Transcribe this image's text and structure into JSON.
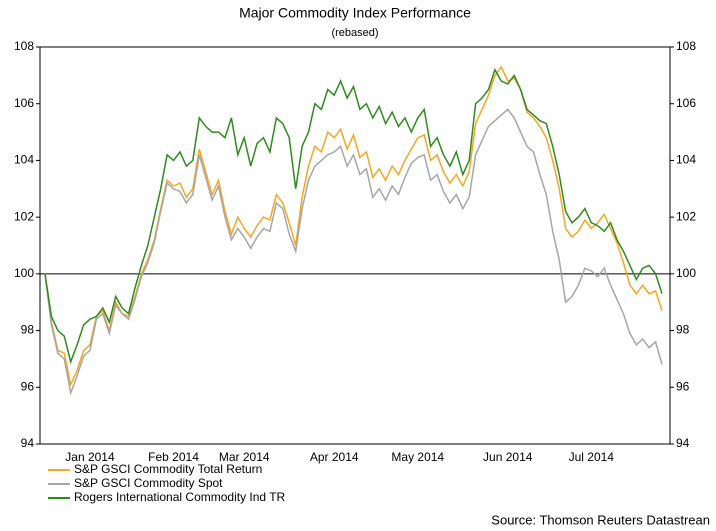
{
  "chart_data": {
    "type": "line",
    "title": "Major Commodity Index Performance",
    "subtitle": "(rebased)",
    "source": "Source: Thomson Reuters Datastrean",
    "categories": [
      null,
      null,
      null,
      null,
      null,
      null,
      null,
      "Jan 2014",
      null,
      null,
      null,
      null,
      null,
      null,
      null,
      null,
      null,
      null,
      null,
      null,
      "Feb 2014",
      null,
      null,
      null,
      null,
      null,
      null,
      null,
      null,
      null,
      null,
      "Mar 2014",
      null,
      null,
      null,
      null,
      null,
      null,
      null,
      null,
      null,
      null,
      null,
      null,
      null,
      "Apr 2014",
      null,
      null,
      null,
      null,
      null,
      null,
      null,
      null,
      null,
      null,
      null,
      null,
      "May 2014",
      null,
      null,
      null,
      null,
      null,
      null,
      null,
      null,
      null,
      null,
      null,
      null,
      null,
      "Jun 2014",
      null,
      null,
      null,
      null,
      null,
      null,
      null,
      null,
      null,
      null,
      null,
      null,
      "Jul 2014",
      null,
      null,
      null,
      null,
      null,
      null,
      null,
      null,
      null,
      null,
      null
    ],
    "series": [
      {
        "name": "S&P GSCI Commodity Total Return",
        "color": "#f5a623",
        "values": [
          100,
          98.3,
          97.3,
          97.2,
          96.1,
          96.6,
          97.3,
          97.5,
          98.5,
          98.7,
          98,
          99,
          98.6,
          98.5,
          99.2,
          100,
          100.5,
          101.2,
          102.3,
          103.3,
          103.1,
          103.2,
          102.7,
          103,
          104.4,
          103.6,
          102.8,
          103.3,
          102.2,
          101.4,
          102,
          101.6,
          101.3,
          101.7,
          102,
          101.9,
          102.8,
          102.5,
          101.8,
          101,
          102.7,
          103.8,
          104.5,
          104.3,
          105,
          104.8,
          105.1,
          104.4,
          104.9,
          104.1,
          104.3,
          103.4,
          103.7,
          103.3,
          103.8,
          103.5,
          104,
          104.4,
          104.8,
          104.9,
          104,
          104.2,
          103.6,
          103.2,
          103.5,
          103.1,
          103.6,
          105.3,
          105.8,
          106.3,
          107,
          107.3,
          106.8,
          106.9,
          106.5,
          105.7,
          105.5,
          105.2,
          104.8,
          104,
          103,
          101.6,
          101.3,
          101.5,
          101.9,
          101.6,
          101.8,
          102.1,
          101.6,
          101.1,
          100.4,
          99.6,
          99.3,
          99.6,
          99.3,
          99.4,
          98.7
        ]
      },
      {
        "name": "S&P GSCI Commodity Spot",
        "color": "#a6a6a6",
        "values": [
          100,
          98.2,
          97.2,
          97,
          95.8,
          96.4,
          97.1,
          97.3,
          98.4,
          98.6,
          97.9,
          98.9,
          98.6,
          98.4,
          99.1,
          99.9,
          100.4,
          101.1,
          102.2,
          103.2,
          103,
          102.9,
          102.5,
          102.8,
          104.2,
          103.4,
          102.6,
          103.1,
          102,
          101.2,
          101.6,
          101.3,
          100.9,
          101.3,
          101.6,
          101.5,
          102.5,
          102.3,
          101.4,
          100.8,
          102.3,
          103.3,
          103.8,
          104,
          104.2,
          104.3,
          104.5,
          103.8,
          104.2,
          103.5,
          103.7,
          102.7,
          103,
          102.6,
          103.1,
          102.8,
          103.4,
          103.9,
          104.1,
          104.2,
          103.3,
          103.5,
          102.9,
          102.5,
          102.8,
          102.3,
          102.7,
          104.2,
          104.7,
          105.2,
          105.4,
          105.6,
          105.8,
          105.5,
          105,
          104.5,
          104.3,
          103.5,
          102.8,
          101.5,
          100.5,
          99,
          99.2,
          99.6,
          100.2,
          100.1,
          99.9,
          100.2,
          99.6,
          99.1,
          98.6,
          97.9,
          97.5,
          97.7,
          97.4,
          97.6,
          96.8
        ]
      },
      {
        "name": "Rogers International Commodity Ind TR",
        "color": "#2e8b1e",
        "values": [
          100,
          98.5,
          98,
          97.8,
          96.9,
          97.5,
          98.2,
          98.4,
          98.5,
          98.8,
          98.3,
          99.2,
          98.8,
          98.6,
          99.5,
          100.3,
          101,
          102,
          103,
          104.2,
          104,
          104.3,
          103.8,
          104,
          105.5,
          105.2,
          105,
          105,
          104.8,
          105.5,
          104.2,
          104.8,
          103.8,
          104.6,
          104.8,
          104.3,
          105.5,
          105.3,
          104.8,
          103,
          104.5,
          105,
          106,
          105.8,
          106.5,
          106.3,
          106.8,
          106.2,
          106.6,
          105.8,
          106,
          105.5,
          105.9,
          105.3,
          105.7,
          105.2,
          105.5,
          105,
          105.5,
          105.8,
          104.5,
          104.8,
          104.2,
          103.8,
          104.3,
          103.5,
          104,
          106,
          106.2,
          106.5,
          107.2,
          106.8,
          106.7,
          107,
          106.5,
          105.8,
          105.6,
          105.4,
          105.3,
          104.5,
          103.5,
          102.2,
          101.8,
          102,
          102.3,
          101.8,
          101.7,
          101.5,
          101.8,
          101.2,
          100.8,
          100.3,
          99.8,
          100.2,
          100.3,
          100,
          99.3
        ]
      }
    ],
    "reference_line": 100,
    "ylim": [
      94,
      108
    ],
    "yticks": [
      94,
      96,
      98,
      100,
      102,
      104,
      106,
      108
    ],
    "legend": "bottom-left",
    "grid": false
  }
}
